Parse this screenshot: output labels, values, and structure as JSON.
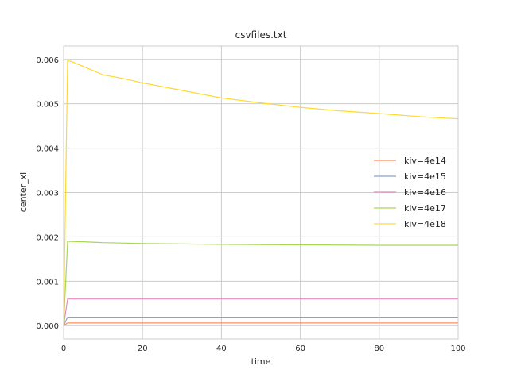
{
  "chart_data": {
    "type": "line",
    "title": "csvfiles.txt",
    "xlabel": "time",
    "ylabel": "center_xi",
    "xlim": [
      0,
      100
    ],
    "ylim": [
      -0.0003,
      0.0063
    ],
    "xticks": [
      0,
      20,
      40,
      60,
      80,
      100
    ],
    "yticks": [
      0.0,
      0.001,
      0.002,
      0.003,
      0.004,
      0.005,
      0.006
    ],
    "ytick_labels": [
      "0.000",
      "0.001",
      "0.002",
      "0.003",
      "0.004",
      "0.005",
      "0.006"
    ],
    "xtick_labels": [
      "0",
      "20",
      "40",
      "60",
      "80",
      "100"
    ],
    "grid": true,
    "legend_position": "center-right",
    "series": [
      {
        "name": "kiv=4e14",
        "color": "#fc8d62",
        "x": [
          0,
          1,
          10,
          20,
          40,
          60,
          80,
          100
        ],
        "y": [
          0.0,
          6e-05,
          6e-05,
          6e-05,
          6e-05,
          6e-05,
          6e-05,
          6e-05
        ]
      },
      {
        "name": "kiv=4e15",
        "color": "#8da0cb",
        "x": [
          0,
          1,
          10,
          20,
          40,
          60,
          80,
          100
        ],
        "y": [
          0.0,
          0.00019,
          0.00019,
          0.00019,
          0.00019,
          0.00019,
          0.00019,
          0.00019
        ]
      },
      {
        "name": "kiv=4e16",
        "color": "#e78ac3",
        "x": [
          0,
          1,
          10,
          20,
          40,
          60,
          80,
          100
        ],
        "y": [
          0.0,
          0.0006,
          0.0006,
          0.0006,
          0.0006,
          0.0006,
          0.0006,
          0.0006
        ]
      },
      {
        "name": "kiv=4e17",
        "color": "#a6d854",
        "x": [
          0,
          1,
          5,
          10,
          20,
          30,
          40,
          60,
          80,
          100
        ],
        "y": [
          0.0,
          0.0019,
          0.00189,
          0.00187,
          0.00185,
          0.00184,
          0.00183,
          0.00182,
          0.00181,
          0.00181
        ]
      },
      {
        "name": "kiv=4e18",
        "color": "#ffd92f",
        "x": [
          0,
          1,
          2,
          5,
          10,
          15,
          20,
          30,
          40,
          50,
          60,
          70,
          80,
          90,
          100
        ],
        "y": [
          0.0,
          0.00597,
          0.00595,
          0.00584,
          0.00565,
          0.00557,
          0.00547,
          0.0053,
          0.00513,
          0.00502,
          0.00492,
          0.00484,
          0.00478,
          0.00471,
          0.00466
        ]
      }
    ]
  }
}
